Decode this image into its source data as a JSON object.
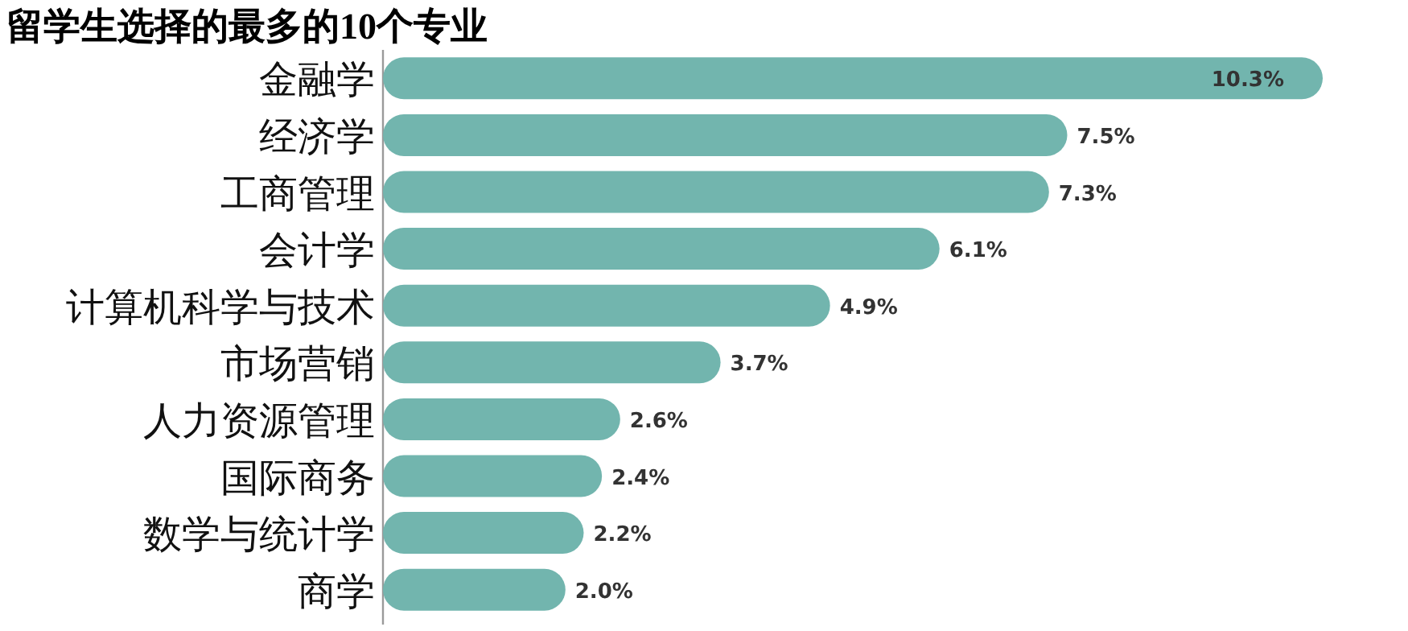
{
  "chart_data": {
    "type": "bar",
    "orientation": "horizontal",
    "title": "留学生选择的最多的10个专业",
    "categories": [
      "金融学",
      "经济学",
      "工商管理",
      "会计学",
      "计算机科学与技术",
      "市场营销",
      "人力资源管理",
      "国际商务",
      "数学与统计学",
      "商学"
    ],
    "values": [
      10.3,
      7.5,
      7.3,
      6.1,
      4.9,
      3.7,
      2.6,
      2.4,
      2.2,
      2.0
    ],
    "value_labels": [
      "10.3%",
      "7.5%",
      "7.3%",
      "6.1%",
      "4.9%",
      "3.7%",
      "2.6%",
      "2.4%",
      "2.2%",
      "2.0%"
    ],
    "color": "#72b5ae"
  }
}
